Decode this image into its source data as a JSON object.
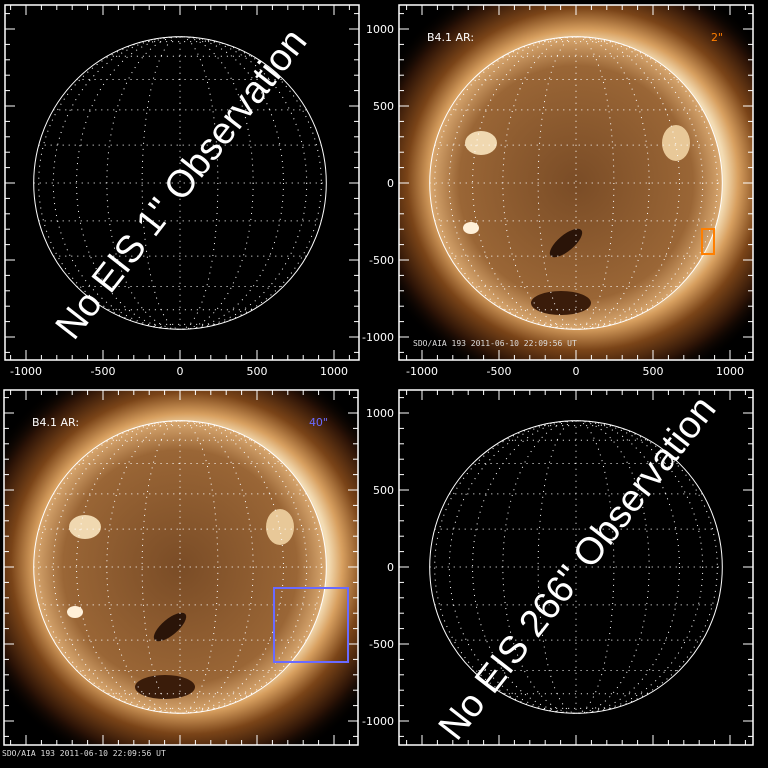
{
  "figure": {
    "panels": [
      {
        "id": "top-left",
        "has_image": false,
        "message": "No EIS 1\" Observation",
        "x_ticks": [
          "-1000",
          "-500",
          "0",
          "500",
          "1000"
        ],
        "y_ticks": []
      },
      {
        "id": "top-right",
        "has_image": true,
        "ar_label": "B4.1 AR:",
        "slit_label": "2\"",
        "slit_color": "#ff7f00",
        "footer": "SDO/AIA 193  2011-06-10 22:09:56 UT",
        "x_ticks": [
          "-1000",
          "-500",
          "0",
          "500",
          "1000"
        ],
        "y_ticks": [
          "1000",
          "500",
          "0",
          "-500",
          "-1000"
        ]
      },
      {
        "id": "bottom-left",
        "has_image": true,
        "ar_label": "B4.1 AR:",
        "slit_label": "40\"",
        "slit_color": "#6a6aff",
        "footer": "SDO/AIA 193  2011-06-10 22:09:56 UT",
        "x_ticks": [],
        "y_ticks": []
      },
      {
        "id": "bottom-right",
        "has_image": false,
        "message": "No EIS 266\" Observation",
        "x_ticks": [],
        "y_ticks": [
          "1000",
          "500",
          "0",
          "-500",
          "-1000"
        ]
      }
    ],
    "axis_range_arcsec": [
      -1150,
      1150
    ],
    "solar_radius_arcsec": 950,
    "colors": {
      "corona": "#a0622a",
      "disk": "#8a5a2e",
      "frame": "#ffffff"
    }
  }
}
